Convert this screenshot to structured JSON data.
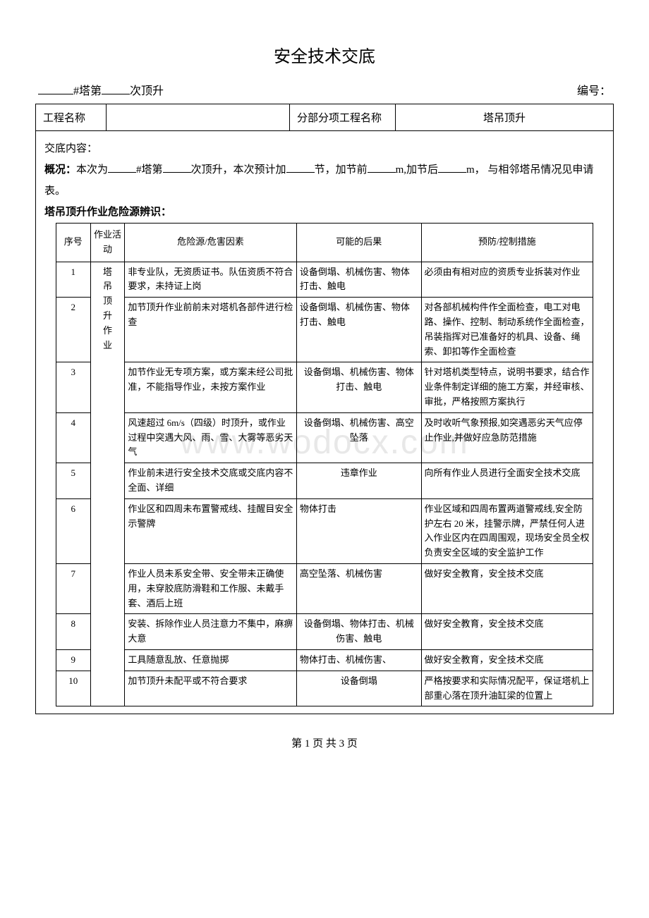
{
  "page": {
    "title": "安全技术交底",
    "subtitle_prefix": "",
    "subtitle_tower_label": "#塔第",
    "subtitle_times_label": "次顶升",
    "subtitle_number_label": "编号：",
    "footer": "第 1 页 共 3 页"
  },
  "header": {
    "project_name_label": "工程名称",
    "project_name_value": "",
    "subproject_label": "分部分项工程名称",
    "subproject_value": "塔吊顶升"
  },
  "content": {
    "heading1": "交底内容：",
    "overview_label": "概况：",
    "overview_text_parts": {
      "p1": "本次为",
      "p2": "#塔第",
      "p3": "次顶升，本次预计加",
      "p4": "节，加节前",
      "p5": "m,加节后",
      "p6": "m， 与相邻塔吊情况见申请表。"
    },
    "heading2": "塔吊顶升作业危险源辨识："
  },
  "hazard_table": {
    "columns": [
      "序号",
      "作业活动",
      "危险源/危害因素",
      "可能的后果",
      "预防/控制措施"
    ],
    "activity_merged": "塔吊顶升作业",
    "rows": [
      {
        "seq": "1",
        "hazard": "非专业队，无资质证书。队伍资质不符合要求，未持证上岗",
        "consequence": "设备倒塌、机械伤害、物体打击、触电",
        "control": "必须由有相对应的资质专业拆装对作业"
      },
      {
        "seq": "2",
        "hazard": "加节顶升作业前前未对塔机各部件进行检查",
        "consequence": "设备倒塌、机械伤害、物体打击、触电",
        "control": "对各部机械构件作全面检查，电工对电路、操作、控制、制动系统作全面检查，吊装指挥对已准备好的机具、设备、绳索、卸扣等作全面检查"
      },
      {
        "seq": "3",
        "hazard": "加节作业无专项方案，或方案未经公司批准，不能指导作业，未按方案作业",
        "consequence": "设备倒塌、机械伤害、物体打击、触电",
        "control": "针对塔机类型特点，说明书要求，结合作业条件制定详细的施工方案，并经审核、审批，严格按照方案执行"
      },
      {
        "seq": "4",
        "hazard": "风速超过 6m/s（四级）时顶升，或作业过程中突遇大风、雨、雪、大雾等恶劣天气",
        "consequence": "设备倒塌、机械伤害、高空坠落",
        "control": "及时收听气象预报,如突遇恶劣天气应停止作业,并做好应急防范措施"
      },
      {
        "seq": "5",
        "hazard": "作业前未进行安全技术交底或交底内容不全面、详细",
        "consequence": "违章作业",
        "control": "向所有作业人员进行全面安全技术交底"
      },
      {
        "seq": "6",
        "hazard": "作业区和四周未布置警戒线、挂醒目安全示警牌",
        "consequence": "物体打击",
        "control": "作业区域和四周布置两道警戒线,安全防护左右 20 米，挂警示牌，严禁任何人进入作业区内在四周围观，现场安全员全权负责安全区域的安全监护工作"
      },
      {
        "seq": "7",
        "hazard": "作业人员未系安全带、安全带未正确使用，未穿胶底防滑鞋和工作服、未戴手套、酒后上班",
        "consequence": "高空坠落、机械伤害",
        "control": "做好安全教育，安全技术交底"
      },
      {
        "seq": "8",
        "hazard": "安装、拆除作业人员注意力不集中，麻痹大意",
        "consequence": "设备倒塌、物体打击、机械伤害、触电",
        "control": "做好安全教育，安全技术交底"
      },
      {
        "seq": "9",
        "hazard": "工具随意乱放、任意抛掷",
        "consequence": "物体打击、机械伤害、",
        "control": "做好安全教育，安全技术交底"
      },
      {
        "seq": "10",
        "hazard": "加节顶升未配平或不符合要求",
        "consequence": "设备倒塌",
        "control": "严格按要求和实际情况配平，保证塔机上部重心落在顶升油缸梁的位置上"
      }
    ]
  },
  "watermark_text": "www.wodocx.com"
}
